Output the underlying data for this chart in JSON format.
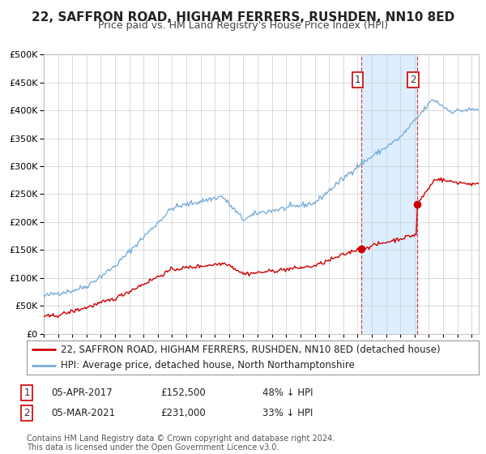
{
  "title": "22, SAFFRON ROAD, HIGHAM FERRERS, RUSHDEN, NN10 8ED",
  "subtitle": "Price paid vs. HM Land Registry's House Price Index (HPI)",
  "legend_line1": "22, SAFFRON ROAD, HIGHAM FERRERS, RUSHDEN, NN10 8ED (detached house)",
  "legend_line2": "HPI: Average price, detached house, North Northamptonshire",
  "annotation1_label": "1",
  "annotation1_date": "05-APR-2017",
  "annotation1_price": "£152,500",
  "annotation1_pct": "48% ↓ HPI",
  "annotation2_label": "2",
  "annotation2_date": "05-MAR-2021",
  "annotation2_price": "£231,000",
  "annotation2_pct": "33% ↓ HPI",
  "footnote": "Contains HM Land Registry data © Crown copyright and database right 2024.\nThis data is licensed under the Open Government Licence v3.0.",
  "red_color": "#cc0000",
  "blue_color": "#7aaddb",
  "background_color": "#ffffff",
  "grid_color": "#cccccc",
  "shade_color": "#ddeeff",
  "title_fontsize": 11,
  "subtitle_fontsize": 9,
  "axis_fontsize": 8,
  "legend_fontsize": 8.5,
  "annotation_fontsize": 8,
  "footnote_fontsize": 7,
  "sale1_year": 2017.27,
  "sale1_value": 152500,
  "sale2_year": 2021.17,
  "sale2_value": 231000,
  "ylim": [
    0,
    500000
  ],
  "yticks": [
    0,
    50000,
    100000,
    150000,
    200000,
    250000,
    300000,
    350000,
    400000,
    450000,
    500000
  ],
  "xstart": 1995,
  "xend": 2025.5
}
